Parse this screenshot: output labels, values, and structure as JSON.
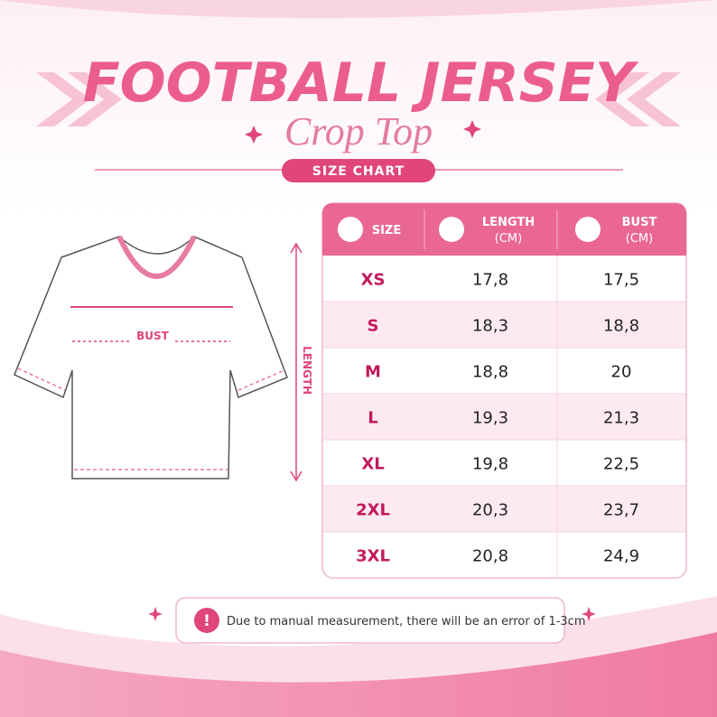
{
  "header": {
    "title": "FOOTBALL JERSEY",
    "subtitle": "Crop Top",
    "badge": "SIZE CHART"
  },
  "diagram": {
    "bust": "BUST",
    "length": "LENGTH"
  },
  "table": {
    "columns": [
      {
        "label": "SIZE"
      },
      {
        "label": "LENGTH",
        "unit": "(CM)"
      },
      {
        "label": "BUST",
        "unit": "(CM)"
      }
    ],
    "rows": [
      [
        "XS",
        "17,8",
        "17,5"
      ],
      [
        "S",
        "18,3",
        "18,8"
      ],
      [
        "M",
        "18,8",
        "20"
      ],
      [
        "L",
        "19,3",
        "21,3"
      ],
      [
        "XL",
        "19,8",
        "22,5"
      ],
      [
        "2XL",
        "20,3",
        "23,7"
      ],
      [
        "3XL",
        "20,8",
        "24,9"
      ]
    ]
  },
  "note": "Due to manual measurement, there will be an error of 1-3cm"
}
